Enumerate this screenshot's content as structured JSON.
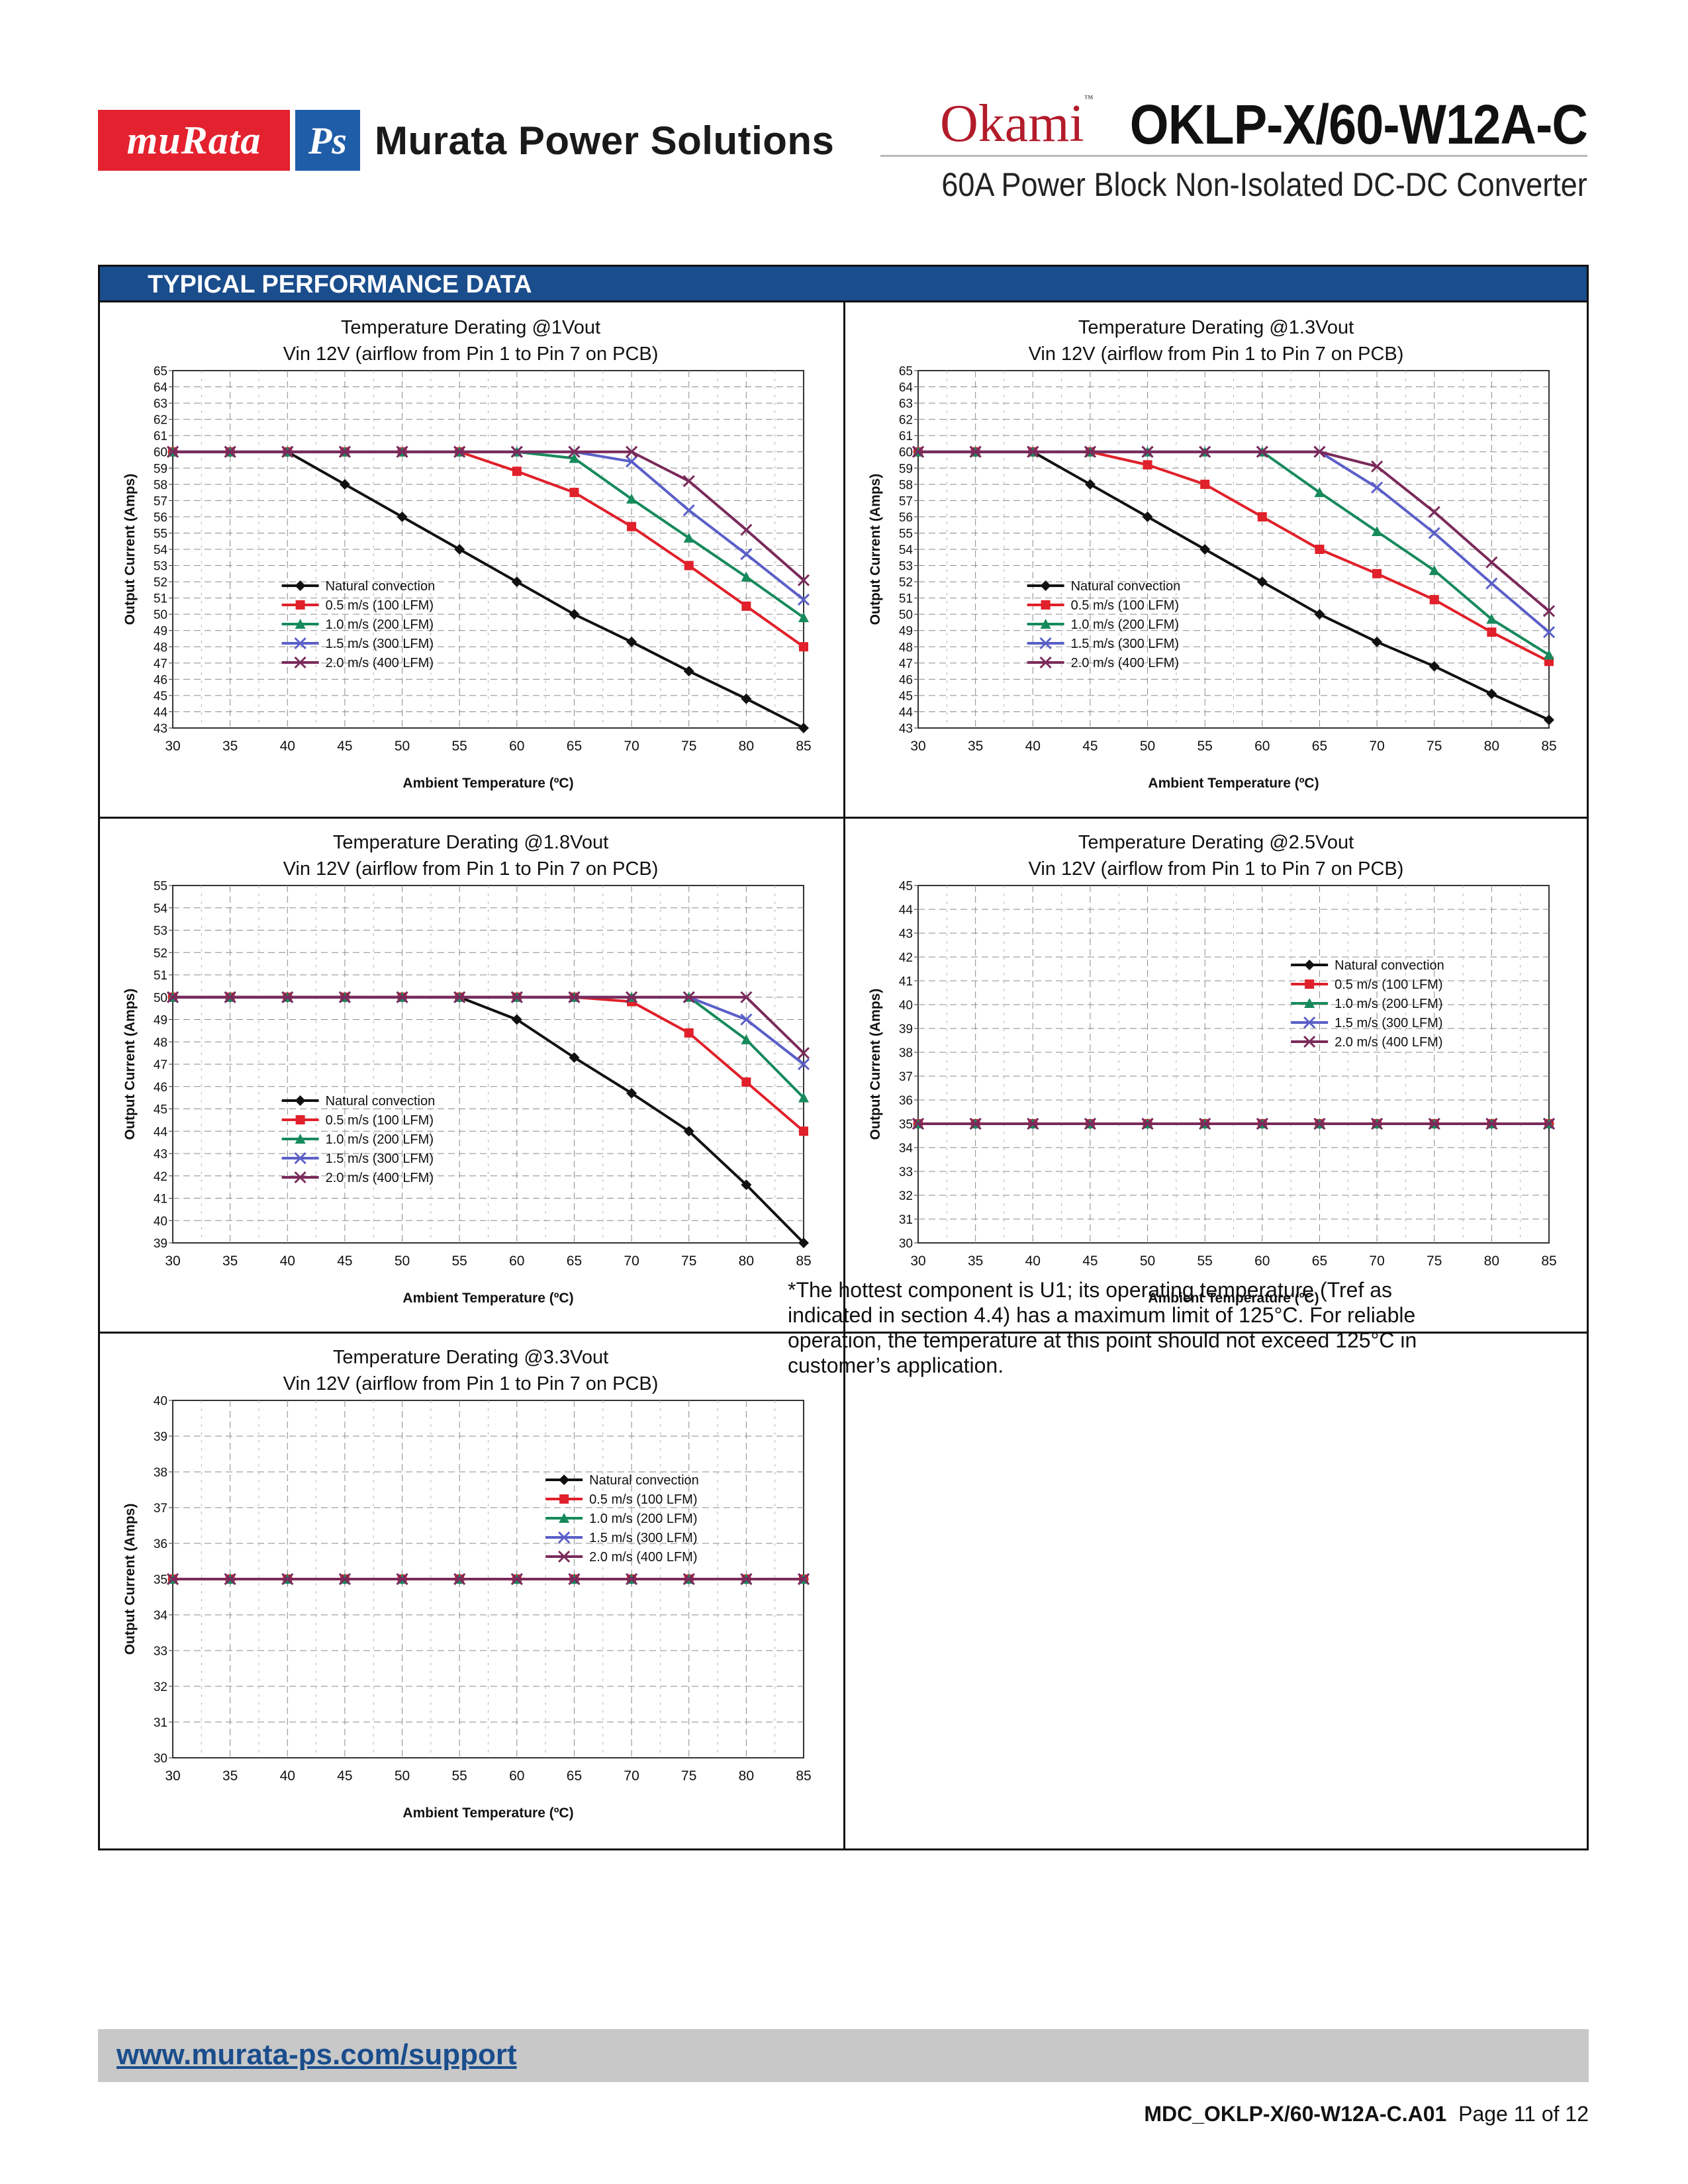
{
  "header": {
    "logo_murata": "muRata",
    "logo_ps": "Ps",
    "company": "Murata Power Solutions",
    "brand": "Okami",
    "model": "OKLP-X/60-W12A-C",
    "subtitle": "60A Power Block Non-Isolated DC-DC Converter"
  },
  "section": {
    "title": "TYPICAL PERFORMANCE DATA"
  },
  "colors": {
    "nc": "#111111",
    "a05": "#e0202a",
    "a10": "#178a5c",
    "a15": "#5a5fc8",
    "a20": "#7a2a5a",
    "section_bar": "#1a4d8c",
    "red_logo": "#e4222f"
  },
  "series_names": [
    "Natural convection",
    "0.5 m/s (100 LFM)",
    "1.0 m/s (200 LFM)",
    "1.5 m/s (300 LFM)",
    "2.0 m/s (400 LFM)"
  ],
  "chart_data": [
    {
      "type": "line",
      "title": "Temperature Derating @1Vout",
      "subtitle": "Vin 12V (airflow from Pin 1 to Pin 7 on PCB)",
      "xlabel": "Ambient Temperature (ºC)",
      "ylabel": "Output Current (Amps)",
      "xlim": [
        30,
        85
      ],
      "ylim": [
        43,
        65
      ],
      "legend": "left",
      "x": [
        30,
        35,
        40,
        45,
        50,
        55,
        60,
        65,
        70,
        75,
        80,
        85
      ],
      "series": [
        {
          "name": "Natural convection",
          "values": [
            60,
            60,
            60,
            58,
            56,
            54,
            52,
            50,
            48.3,
            46.5,
            44.8,
            43
          ]
        },
        {
          "name": "0.5 m/s (100 LFM)",
          "values": [
            60,
            60,
            60,
            60,
            60,
            60,
            58.8,
            57.5,
            55.4,
            53,
            50.5,
            48
          ]
        },
        {
          "name": "1.0 m/s (200 LFM)",
          "values": [
            60,
            60,
            60,
            60,
            60,
            60,
            60,
            59.6,
            57.1,
            54.7,
            52.3,
            49.8
          ]
        },
        {
          "name": "1.5 m/s (300 LFM)",
          "values": [
            60,
            60,
            60,
            60,
            60,
            60,
            60,
            60,
            59.4,
            56.4,
            53.7,
            50.9
          ]
        },
        {
          "name": "2.0 m/s (400 LFM)",
          "values": [
            60,
            60,
            60,
            60,
            60,
            60,
            60,
            60,
            60,
            58.2,
            55.2,
            52.1
          ]
        }
      ]
    },
    {
      "type": "line",
      "title": "Temperature Derating @1.3Vout",
      "subtitle": "Vin 12V (airflow from Pin 1 to Pin 7 on PCB)",
      "xlabel": "Ambient Temperature (ºC)",
      "ylabel": "Output Current (Amps)",
      "xlim": [
        30,
        85
      ],
      "ylim": [
        43,
        65
      ],
      "legend": "left",
      "x": [
        30,
        35,
        40,
        45,
        50,
        55,
        60,
        65,
        70,
        75,
        80,
        85
      ],
      "series": [
        {
          "name": "Natural convection",
          "values": [
            60,
            60,
            60,
            58,
            56,
            54,
            52,
            50,
            48.3,
            46.8,
            45.1,
            43.5
          ]
        },
        {
          "name": "0.5 m/s (100 LFM)",
          "values": [
            60,
            60,
            60,
            60,
            59.2,
            58,
            56,
            54,
            52.5,
            50.9,
            48.9,
            47.1
          ]
        },
        {
          "name": "1.0 m/s (200 LFM)",
          "values": [
            60,
            60,
            60,
            60,
            60,
            60,
            60,
            57.5,
            55.1,
            52.7,
            49.7,
            47.5
          ]
        },
        {
          "name": "1.5 m/s (300 LFM)",
          "values": [
            60,
            60,
            60,
            60,
            60,
            60,
            60,
            60,
            57.8,
            55,
            51.9,
            48.9
          ]
        },
        {
          "name": "2.0 m/s (400 LFM)",
          "values": [
            60,
            60,
            60,
            60,
            60,
            60,
            60,
            60,
            59.1,
            56.3,
            53.2,
            50.2
          ]
        }
      ]
    },
    {
      "type": "line",
      "title": "Temperature Derating @1.8Vout",
      "subtitle": "Vin 12V (airflow from Pin 1 to Pin 7 on PCB)",
      "xlabel": "Ambient Temperature (ºC)",
      "ylabel": "Output Current (Amps)",
      "xlim": [
        30,
        85
      ],
      "ylim": [
        39,
        55
      ],
      "legend": "left",
      "x": [
        30,
        35,
        40,
        45,
        50,
        55,
        60,
        65,
        70,
        75,
        80,
        85
      ],
      "series": [
        {
          "name": "Natural convection",
          "values": [
            50,
            50,
            50,
            50,
            50,
            50,
            49,
            47.3,
            45.7,
            44,
            41.6,
            39
          ]
        },
        {
          "name": "0.5 m/s (100 LFM)",
          "values": [
            50,
            50,
            50,
            50,
            50,
            50,
            50,
            50,
            49.8,
            48.4,
            46.2,
            44
          ]
        },
        {
          "name": "1.0 m/s (200 LFM)",
          "values": [
            50,
            50,
            50,
            50,
            50,
            50,
            50,
            50,
            50,
            50,
            48.1,
            45.5
          ]
        },
        {
          "name": "1.5 m/s (300 LFM)",
          "values": [
            50,
            50,
            50,
            50,
            50,
            50,
            50,
            50,
            50,
            50,
            49,
            47
          ]
        },
        {
          "name": "2.0 m/s (400 LFM)",
          "values": [
            50,
            50,
            50,
            50,
            50,
            50,
            50,
            50,
            50,
            50,
            50,
            47.5
          ]
        }
      ]
    },
    {
      "type": "line",
      "title": "Temperature Derating @2.5Vout",
      "subtitle": "Vin 12V (airflow from Pin 1 to Pin 7 on PCB)",
      "xlabel": "Ambient Temperature (ºC)",
      "ylabel": "Output Current (Amps)",
      "xlim": [
        30,
        85
      ],
      "ylim": [
        30,
        45
      ],
      "legend": "right",
      "x": [
        30,
        35,
        40,
        45,
        50,
        55,
        60,
        65,
        70,
        75,
        80,
        85
      ],
      "series": [
        {
          "name": "Natural convection",
          "values": [
            35,
            35,
            35,
            35,
            35,
            35,
            35,
            35,
            35,
            35,
            35,
            35
          ]
        },
        {
          "name": "0.5 m/s (100 LFM)",
          "values": [
            35,
            35,
            35,
            35,
            35,
            35,
            35,
            35,
            35,
            35,
            35,
            35
          ]
        },
        {
          "name": "1.0 m/s (200 LFM)",
          "values": [
            35,
            35,
            35,
            35,
            35,
            35,
            35,
            35,
            35,
            35,
            35,
            35
          ]
        },
        {
          "name": "1.5 m/s (300 LFM)",
          "values": [
            35,
            35,
            35,
            35,
            35,
            35,
            35,
            35,
            35,
            35,
            35,
            35
          ]
        },
        {
          "name": "2.0 m/s (400 LFM)",
          "values": [
            35,
            35,
            35,
            35,
            35,
            35,
            35,
            35,
            35,
            35,
            35,
            35
          ]
        }
      ]
    },
    {
      "type": "line",
      "title": "Temperature Derating @3.3Vout",
      "subtitle": "Vin 12V (airflow from Pin 1 to Pin 7 on PCB)",
      "xlabel": "Ambient Temperature (ºC)",
      "ylabel": "Output Current (Amps)",
      "xlim": [
        30,
        85
      ],
      "ylim": [
        30,
        40
      ],
      "legend": "right",
      "x": [
        30,
        35,
        40,
        45,
        50,
        55,
        60,
        65,
        70,
        75,
        80,
        85
      ],
      "series": [
        {
          "name": "Natural convection",
          "values": [
            35,
            35,
            35,
            35,
            35,
            35,
            35,
            35,
            35,
            35,
            35,
            35
          ]
        },
        {
          "name": "0.5 m/s (100 LFM)",
          "values": [
            35,
            35,
            35,
            35,
            35,
            35,
            35,
            35,
            35,
            35,
            35,
            35
          ]
        },
        {
          "name": "1.0 m/s (200 LFM)",
          "values": [
            35,
            35,
            35,
            35,
            35,
            35,
            35,
            35,
            35,
            35,
            35,
            35
          ]
        },
        {
          "name": "1.5 m/s (300 LFM)",
          "values": [
            35,
            35,
            35,
            35,
            35,
            35,
            35,
            35,
            35,
            35,
            35,
            35
          ]
        },
        {
          "name": "2.0 m/s (400 LFM)",
          "values": [
            35,
            35,
            35,
            35,
            35,
            35,
            35,
            35,
            35,
            35,
            35,
            35
          ]
        }
      ]
    }
  ],
  "note": "*The hottest component is U1; its operating temperature (Tref as indicated in section 4.4) has a maximum limit of 125°C. For reliable operation, the temperature at this point should not exceed 125°C in customer’s application.",
  "footer": {
    "link": "www.murata-ps.com/support",
    "doc_code": "MDC_OKLP-X/60-W12A-C.A01",
    "page": "Page 11 of 12"
  }
}
